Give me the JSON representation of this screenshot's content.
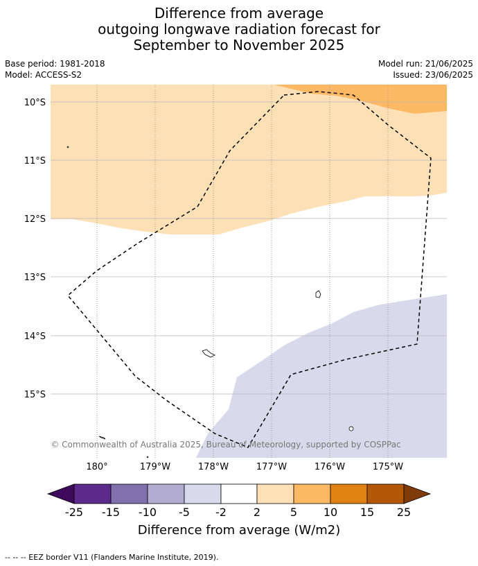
{
  "title": {
    "line1": "Difference from average",
    "line2": "outgoing longwave radiation forecast for",
    "line3": "September to November 2025"
  },
  "meta": {
    "base_period": "Base period: 1981-2018",
    "model": "Model: ACCESS-S2",
    "model_run": "Model run: 21/06/2025",
    "issued": "Issued: 23/06/2025"
  },
  "map": {
    "lat_labels": [
      "10°S",
      "11°S",
      "12°S",
      "13°S",
      "14°S",
      "15°S"
    ],
    "lon_labels": [
      "180°",
      "179°W",
      "178°W",
      "177°W",
      "176°W",
      "175°W"
    ],
    "credit": "© Commonwealth of Australia 2025, Bureau of Meteorology, supported by COSPPac"
  },
  "colorbar": {
    "labels": [
      "-25",
      "-15",
      "-10",
      "-5",
      "-2",
      "2",
      "5",
      "10",
      "15",
      "25"
    ],
    "colors": [
      "#3f0a5b",
      "#5b2a8a",
      "#8070ae",
      "#b2abd2",
      "#d8d9ea",
      "#ffffff",
      "#fee0b6",
      "#fdb863",
      "#e08214",
      "#b35806",
      "#7f3b08"
    ],
    "title": "Difference from average (W/m2)"
  },
  "footnote": "--  --  -- EEZ border V11 (Flanders Marine Institute, 2019)."
}
